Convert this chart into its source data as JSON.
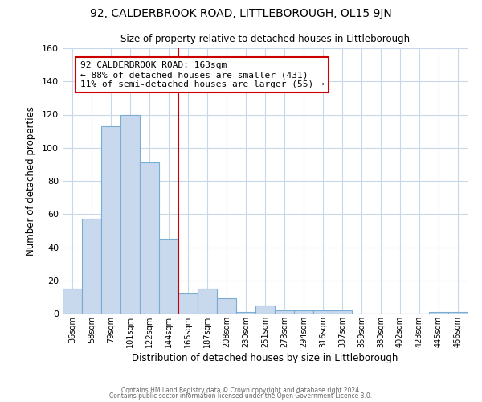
{
  "title": "92, CALDERBROOK ROAD, LITTLEBOROUGH, OL15 9JN",
  "subtitle": "Size of property relative to detached houses in Littleborough",
  "xlabel": "Distribution of detached houses by size in Littleborough",
  "ylabel": "Number of detached properties",
  "bar_labels": [
    "36sqm",
    "58sqm",
    "79sqm",
    "101sqm",
    "122sqm",
    "144sqm",
    "165sqm",
    "187sqm",
    "208sqm",
    "230sqm",
    "251sqm",
    "273sqm",
    "294sqm",
    "316sqm",
    "337sqm",
    "359sqm",
    "380sqm",
    "402sqm",
    "423sqm",
    "445sqm",
    "466sqm"
  ],
  "bar_values": [
    15,
    57,
    113,
    120,
    91,
    45,
    12,
    15,
    9,
    1,
    5,
    2,
    2,
    2,
    2,
    0,
    0,
    0,
    0,
    1,
    1
  ],
  "bar_color": "#c8d9ee",
  "bar_edge_color": "#7aadd4",
  "vline_x_index": 6,
  "vline_color": "#cc0000",
  "annotation_text": "92 CALDERBROOK ROAD: 163sqm\n← 88% of detached houses are smaller (431)\n11% of semi-detached houses are larger (55) →",
  "annotation_box_color": "#ffffff",
  "annotation_box_edge": "#cc0000",
  "ylim": [
    0,
    160
  ],
  "yticks": [
    0,
    20,
    40,
    60,
    80,
    100,
    120,
    140,
    160
  ],
  "footer1": "Contains HM Land Registry data © Crown copyright and database right 2024.",
  "footer2": "Contains public sector information licensed under the Open Government Licence 3.0.",
  "background_color": "#ffffff",
  "grid_color": "#c8d8e8"
}
